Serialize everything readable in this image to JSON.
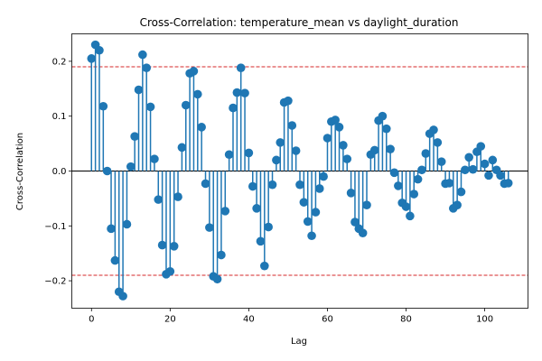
{
  "chart_data": {
    "type": "stem",
    "title": "Cross-Correlation: temperature_mean vs daylight_duration",
    "xlabel": "Lag",
    "ylabel": "Cross-Correlation",
    "xlim": [
      -5,
      111
    ],
    "ylim": [
      -0.25,
      0.25
    ],
    "xticks": [
      0,
      20,
      40,
      60,
      80,
      100
    ],
    "yticks": [
      -0.2,
      -0.1,
      0.0,
      0.1,
      0.2
    ],
    "ytick_labels": [
      "−0.2",
      "−0.1",
      "0.0",
      "0.1",
      "0.2"
    ],
    "confidence_bounds": [
      0.19,
      -0.19
    ],
    "grid": false,
    "colors": {
      "stem": "#1f77b4",
      "bound": "#d62728",
      "zero": "#000000"
    },
    "x": [
      0,
      1,
      2,
      3,
      4,
      5,
      6,
      7,
      8,
      9,
      10,
      11,
      12,
      13,
      14,
      15,
      16,
      17,
      18,
      19,
      20,
      21,
      22,
      23,
      24,
      25,
      26,
      27,
      28,
      29,
      30,
      31,
      32,
      33,
      34,
      35,
      36,
      37,
      38,
      39,
      40,
      41,
      42,
      43,
      44,
      45,
      46,
      47,
      48,
      49,
      50,
      51,
      52,
      53,
      54,
      55,
      56,
      57,
      58,
      59,
      60,
      61,
      62,
      63,
      64,
      65,
      66,
      67,
      68,
      69,
      70,
      71,
      72,
      73,
      74,
      75,
      76,
      77,
      78,
      79,
      80,
      81,
      82,
      83,
      84,
      85,
      86,
      87,
      88,
      89,
      90,
      91,
      92,
      93,
      94,
      95,
      96,
      97,
      98,
      99,
      100,
      101,
      102,
      103,
      104,
      105,
      106
    ],
    "values": [
      0.205,
      0.23,
      0.22,
      0.118,
      0.0,
      -0.105,
      -0.163,
      -0.22,
      -0.228,
      -0.097,
      0.008,
      0.063,
      0.148,
      0.212,
      0.188,
      0.117,
      0.022,
      -0.052,
      -0.135,
      -0.188,
      -0.183,
      -0.137,
      -0.047,
      0.043,
      0.12,
      0.178,
      0.182,
      0.14,
      0.08,
      -0.023,
      -0.103,
      -0.192,
      -0.197,
      -0.153,
      -0.073,
      0.03,
      0.115,
      0.143,
      0.188,
      0.142,
      0.033,
      -0.028,
      -0.068,
      -0.128,
      -0.173,
      -0.102,
      -0.025,
      0.02,
      0.052,
      0.125,
      0.128,
      0.083,
      0.037,
      -0.025,
      -0.057,
      -0.092,
      -0.118,
      -0.075,
      -0.032,
      -0.01,
      0.06,
      0.09,
      0.093,
      0.08,
      0.047,
      0.022,
      -0.04,
      -0.093,
      -0.105,
      -0.113,
      -0.062,
      0.03,
      0.038,
      0.092,
      0.1,
      0.077,
      0.04,
      -0.003,
      -0.027,
      -0.058,
      -0.065,
      -0.082,
      -0.042,
      -0.015,
      0.002,
      0.032,
      0.068,
      0.075,
      0.052,
      0.017,
      -0.023,
      -0.022,
      -0.068,
      -0.062,
      -0.038,
      0.002,
      0.025,
      0.003,
      0.035,
      0.045,
      0.013,
      -0.008,
      0.02,
      0.002,
      -0.008,
      -0.023,
      -0.022
    ]
  }
}
